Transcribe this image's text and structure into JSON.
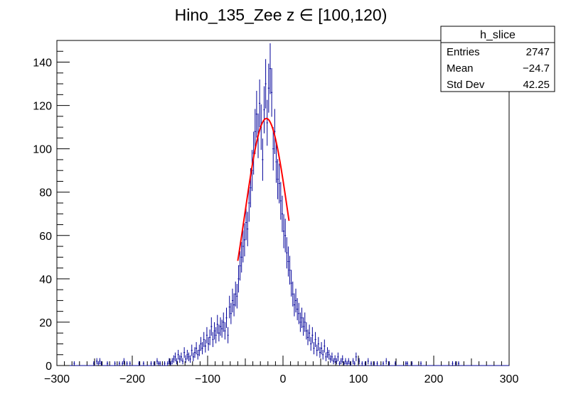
{
  "chart_data": {
    "type": "histogram",
    "title": "Hino_135_Zee z  ∈ [100,120)",
    "xlabel": "",
    "ylabel": "",
    "xlim": [
      -300,
      300
    ],
    "ylim": [
      0,
      150
    ],
    "x_ticks": [
      -300,
      -200,
      -100,
      0,
      100,
      200,
      300
    ],
    "x_tick_labels": [
      "−300",
      "−200",
      "−100",
      "0",
      "100",
      "200",
      "300"
    ],
    "y_ticks": [
      0,
      20,
      40,
      60,
      80,
      100,
      120,
      140
    ],
    "y_tick_labels": [
      "0",
      "20",
      "40",
      "60",
      "80",
      "100",
      "120",
      "140"
    ],
    "grid": false,
    "bin_range": [
      -300,
      300
    ],
    "bin_width": 2,
    "series": [
      {
        "name": "h_slice",
        "kind": "histogram-with-errors",
        "color": "#000099",
        "bins": [
          {
            "x": -278,
            "y": 1
          },
          {
            "x": -252,
            "y": 1
          },
          {
            "x": -248,
            "y": 2
          },
          {
            "x": -246,
            "y": 1
          },
          {
            "x": -244,
            "y": 2
          },
          {
            "x": -242,
            "y": 1
          },
          {
            "x": -234,
            "y": 1
          },
          {
            "x": -224,
            "y": 1
          },
          {
            "x": -218,
            "y": 1
          },
          {
            "x": -214,
            "y": 1
          },
          {
            "x": -212,
            "y": 2
          },
          {
            "x": -208,
            "y": 1
          },
          {
            "x": -204,
            "y": 1
          },
          {
            "x": -192,
            "y": 1
          },
          {
            "x": -186,
            "y": 1
          },
          {
            "x": -176,
            "y": 1
          },
          {
            "x": -172,
            "y": 1
          },
          {
            "x": -168,
            "y": 2
          },
          {
            "x": -166,
            "y": 1
          },
          {
            "x": -164,
            "y": 1
          },
          {
            "x": -158,
            "y": 1
          },
          {
            "x": -154,
            "y": 1
          },
          {
            "x": -152,
            "y": 2
          },
          {
            "x": -150,
            "y": 1
          },
          {
            "x": -148,
            "y": 2
          },
          {
            "x": -146,
            "y": 3
          },
          {
            "x": -144,
            "y": 4
          },
          {
            "x": -142,
            "y": 2
          },
          {
            "x": -140,
            "y": 5
          },
          {
            "x": -138,
            "y": 3
          },
          {
            "x": -136,
            "y": 4
          },
          {
            "x": -134,
            "y": 2
          },
          {
            "x": -132,
            "y": 6
          },
          {
            "x": -130,
            "y": 3
          },
          {
            "x": -128,
            "y": 5
          },
          {
            "x": -126,
            "y": 4
          },
          {
            "x": -124,
            "y": 3
          },
          {
            "x": -122,
            "y": 7
          },
          {
            "x": -120,
            "y": 4
          },
          {
            "x": -118,
            "y": 6
          },
          {
            "x": -116,
            "y": 8
          },
          {
            "x": -114,
            "y": 5
          },
          {
            "x": -112,
            "y": 7
          },
          {
            "x": -110,
            "y": 10
          },
          {
            "x": -108,
            "y": 8
          },
          {
            "x": -106,
            "y": 12
          },
          {
            "x": -104,
            "y": 9
          },
          {
            "x": -102,
            "y": 14
          },
          {
            "x": -100,
            "y": 10
          },
          {
            "x": -98,
            "y": 13
          },
          {
            "x": -96,
            "y": 18
          },
          {
            "x": -94,
            "y": 12
          },
          {
            "x": -92,
            "y": 16
          },
          {
            "x": -90,
            "y": 14
          },
          {
            "x": -88,
            "y": 19
          },
          {
            "x": -86,
            "y": 15
          },
          {
            "x": -84,
            "y": 18
          },
          {
            "x": -82,
            "y": 17
          },
          {
            "x": -80,
            "y": 20
          },
          {
            "x": -78,
            "y": 16
          },
          {
            "x": -76,
            "y": 22
          },
          {
            "x": -74,
            "y": 14
          },
          {
            "x": -72,
            "y": 27
          },
          {
            "x": -70,
            "y": 24
          },
          {
            "x": -68,
            "y": 30
          },
          {
            "x": -66,
            "y": 28
          },
          {
            "x": -64,
            "y": 33
          },
          {
            "x": -62,
            "y": 32
          },
          {
            "x": -60,
            "y": 40
          },
          {
            "x": -58,
            "y": 46
          },
          {
            "x": -56,
            "y": 50
          },
          {
            "x": -54,
            "y": 55
          },
          {
            "x": -52,
            "y": 58
          },
          {
            "x": -50,
            "y": 66
          },
          {
            "x": -48,
            "y": 63
          },
          {
            "x": -46,
            "y": 75
          },
          {
            "x": -44,
            "y": 82
          },
          {
            "x": -42,
            "y": 90
          },
          {
            "x": -40,
            "y": 98
          },
          {
            "x": -38,
            "y": 108
          },
          {
            "x": -36,
            "y": 116
          },
          {
            "x": -34,
            "y": 106
          },
          {
            "x": -32,
            "y": 121
          },
          {
            "x": -30,
            "y": 110
          },
          {
            "x": -28,
            "y": 95
          },
          {
            "x": -26,
            "y": 118
          },
          {
            "x": -24,
            "y": 130
          },
          {
            "x": -22,
            "y": 112
          },
          {
            "x": -20,
            "y": 128
          },
          {
            "x": -18,
            "y": 137
          },
          {
            "x": -16,
            "y": 126
          },
          {
            "x": -14,
            "y": 100
          },
          {
            "x": -12,
            "y": 108
          },
          {
            "x": -10,
            "y": 94
          },
          {
            "x": -8,
            "y": 86
          },
          {
            "x": -6,
            "y": 84
          },
          {
            "x": -4,
            "y": 76
          },
          {
            "x": -2,
            "y": 70
          },
          {
            "x": 0,
            "y": 62
          },
          {
            "x": 2,
            "y": 60
          },
          {
            "x": 4,
            "y": 52
          },
          {
            "x": 6,
            "y": 48
          },
          {
            "x": 8,
            "y": 44
          },
          {
            "x": 10,
            "y": 38
          },
          {
            "x": 12,
            "y": 33
          },
          {
            "x": 14,
            "y": 28
          },
          {
            "x": 16,
            "y": 30
          },
          {
            "x": 18,
            "y": 26
          },
          {
            "x": 20,
            "y": 24
          },
          {
            "x": 22,
            "y": 20
          },
          {
            "x": 24,
            "y": 22
          },
          {
            "x": 26,
            "y": 18
          },
          {
            "x": 28,
            "y": 20
          },
          {
            "x": 30,
            "y": 16
          },
          {
            "x": 32,
            "y": 13
          },
          {
            "x": 34,
            "y": 15
          },
          {
            "x": 36,
            "y": 10
          },
          {
            "x": 38,
            "y": 14
          },
          {
            "x": 40,
            "y": 8
          },
          {
            "x": 42,
            "y": 12
          },
          {
            "x": 44,
            "y": 7
          },
          {
            "x": 46,
            "y": 10
          },
          {
            "x": 48,
            "y": 6
          },
          {
            "x": 50,
            "y": 8
          },
          {
            "x": 52,
            "y": 5
          },
          {
            "x": 54,
            "y": 9
          },
          {
            "x": 56,
            "y": 4
          },
          {
            "x": 58,
            "y": 6
          },
          {
            "x": 60,
            "y": 5
          },
          {
            "x": 62,
            "y": 3
          },
          {
            "x": 64,
            "y": 4
          },
          {
            "x": 66,
            "y": 2
          },
          {
            "x": 68,
            "y": 3
          },
          {
            "x": 70,
            "y": 2
          },
          {
            "x": 72,
            "y": 4
          },
          {
            "x": 74,
            "y": 1
          },
          {
            "x": 76,
            "y": 2
          },
          {
            "x": 78,
            "y": 3
          },
          {
            "x": 80,
            "y": 1
          },
          {
            "x": 82,
            "y": 2
          },
          {
            "x": 84,
            "y": 1
          },
          {
            "x": 86,
            "y": 2
          },
          {
            "x": 88,
            "y": 1
          },
          {
            "x": 92,
            "y": 2
          },
          {
            "x": 94,
            "y": 1
          },
          {
            "x": 96,
            "y": 4
          },
          {
            "x": 100,
            "y": 2
          },
          {
            "x": 104,
            "y": 1
          },
          {
            "x": 108,
            "y": 1
          },
          {
            "x": 112,
            "y": 2
          },
          {
            "x": 116,
            "y": 1
          },
          {
            "x": 120,
            "y": 1
          },
          {
            "x": 124,
            "y": 1
          },
          {
            "x": 132,
            "y": 1
          },
          {
            "x": 136,
            "y": 2
          },
          {
            "x": 140,
            "y": 1
          },
          {
            "x": 148,
            "y": 1
          },
          {
            "x": 162,
            "y": 1
          },
          {
            "x": 164,
            "y": 1
          },
          {
            "x": 170,
            "y": 1
          },
          {
            "x": 182,
            "y": 1
          },
          {
            "x": 224,
            "y": 1
          },
          {
            "x": 228,
            "y": 1
          },
          {
            "x": 232,
            "y": 1
          }
        ]
      },
      {
        "name": "gaussian-fit",
        "kind": "curve",
        "color": "#ff0000",
        "constant": 114,
        "mean": -22,
        "sigma": 29,
        "range": [
          -60,
          8
        ]
      }
    ],
    "legend": "top-right"
  },
  "stats_box": {
    "name": "h_slice",
    "rows": [
      {
        "label": "Entries",
        "value": "2747"
      },
      {
        "label": "Mean",
        "value": "−24.7"
      },
      {
        "label": "Std Dev",
        "value": "42.25"
      }
    ]
  }
}
